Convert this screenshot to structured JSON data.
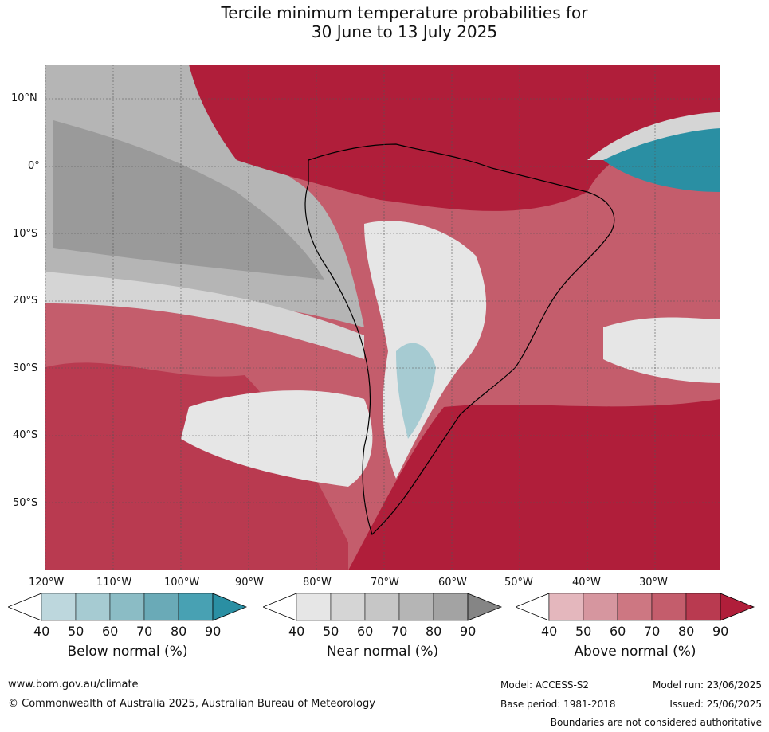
{
  "title": {
    "line1": "Tercile minimum temperature probabilities for",
    "line2": "30 June to 13 July 2025"
  },
  "axes": {
    "lat_labels": [
      "10°N",
      "0°",
      "10°S",
      "20°S",
      "30°S",
      "40°S",
      "50°S"
    ],
    "lon_labels": [
      "120°W",
      "110°W",
      "100°W",
      "90°W",
      "80°W",
      "70°W",
      "60°W",
      "50°W",
      "40°W",
      "30°W"
    ]
  },
  "colorbars": [
    {
      "label": "Below normal (%)",
      "ticks": [
        "40",
        "50",
        "60",
        "70",
        "80",
        "90"
      ],
      "colors": [
        "#ffffff",
        "#bdd7dd",
        "#a6cbd2",
        "#8bbcc5",
        "#6aaab7",
        "#48a1b3",
        "#2a8fa3"
      ]
    },
    {
      "label": "Near normal (%)",
      "ticks": [
        "40",
        "50",
        "60",
        "70",
        "80",
        "90"
      ],
      "colors": [
        "#ffffff",
        "#e6e6e6",
        "#d5d5d5",
        "#c6c6c6",
        "#b5b5b5",
        "#a3a3a3",
        "#858585"
      ]
    },
    {
      "label": "Above normal (%)",
      "ticks": [
        "40",
        "50",
        "60",
        "70",
        "80",
        "90"
      ],
      "colors": [
        "#ffffff",
        "#e4b7bd",
        "#d6969f",
        "#cd7782",
        "#c45d6c",
        "#b93a50",
        "#b01e3a"
      ]
    }
  ],
  "footer": {
    "url": "www.bom.gov.au/climate",
    "copyright": "© Commonwealth of Australia 2025, Australian Bureau of Meteorology",
    "model": "Model: ACCESS-S2",
    "model_run": "Model run: 23/06/2025",
    "base_period": "Base period: 1981-2018",
    "issued": "Issued: 25/06/2025",
    "disclaimer": "Boundaries are not considered authoritative"
  }
}
